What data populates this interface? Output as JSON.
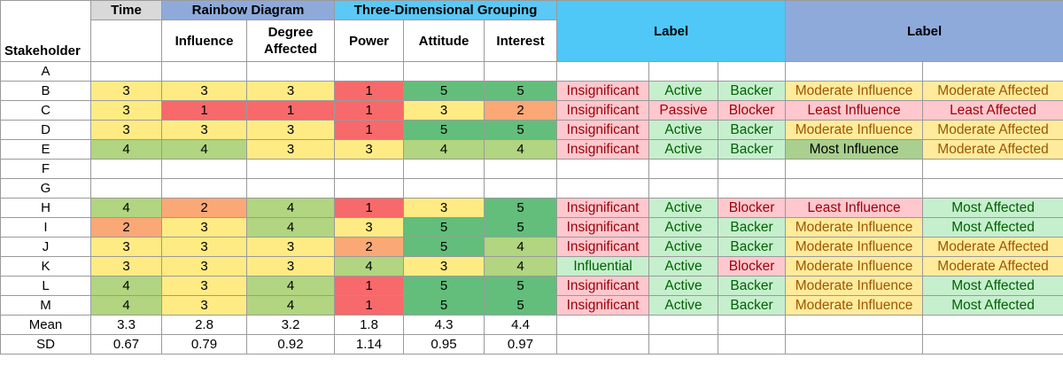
{
  "headers": {
    "stakeholder": "Stakeholder",
    "time": "Time",
    "rainbow": "Rainbow Diagram",
    "three_d": "Three-Dimensional Grouping",
    "label1": "Label",
    "label2": "Label",
    "influence": "Influence",
    "degree_affected": "Degree Affected",
    "power": "Power",
    "attitude": "Attitude",
    "interest": "Interest"
  },
  "colors": {
    "gray_header": "#d9d9d9",
    "rainbow_header": "#8eaadb",
    "three_d_header": "#5bc8f5",
    "label1_header": "#4fc8f8",
    "label2_header": "#8eaadb",
    "score_1": "#f8696b",
    "score_2": "#fba877",
    "score_3": "#ffeb84",
    "score_4": "#b1d580",
    "score_5": "#63be7b",
    "pink_bg": "#ffc7ce",
    "pink_text": "#9c0006",
    "green_bg": "#c6efce",
    "green_text": "#006100",
    "yellow_bg": "#ffeb9c",
    "yellow_text": "#9c5700",
    "most_influence_bg": "#a9d08e",
    "most_influence_text": "#000000"
  },
  "rows": [
    {
      "id": "A",
      "time": "",
      "influence": "",
      "degree": "",
      "power": "",
      "attitude": "",
      "interest": "",
      "l1": "",
      "l2": "",
      "l3": "",
      "l4": "",
      "l5": ""
    },
    {
      "id": "B",
      "time": "3",
      "influence": "3",
      "degree": "3",
      "power": "1",
      "attitude": "5",
      "interest": "5",
      "l1": "Insignificant",
      "l2": "Active",
      "l3": "Backer",
      "l4": "Moderate Influence",
      "l5": "Moderate Affected"
    },
    {
      "id": "C",
      "time": "3",
      "influence": "1",
      "degree": "1",
      "power": "1",
      "attitude": "3",
      "interest": "2",
      "l1": "Insignificant",
      "l2": "Passive",
      "l3": "Blocker",
      "l4": "Least Influence",
      "l5": "Least Affected"
    },
    {
      "id": "D",
      "time": "3",
      "influence": "3",
      "degree": "3",
      "power": "1",
      "attitude": "5",
      "interest": "5",
      "l1": "Insignificant",
      "l2": "Active",
      "l3": "Backer",
      "l4": "Moderate Influence",
      "l5": "Moderate Affected"
    },
    {
      "id": "E",
      "time": "4",
      "influence": "4",
      "degree": "3",
      "power": "3",
      "attitude": "4",
      "interest": "4",
      "l1": "Insignificant",
      "l2": "Active",
      "l3": "Backer",
      "l4": "Most Influence",
      "l5": "Moderate Affected"
    },
    {
      "id": "F",
      "time": "",
      "influence": "",
      "degree": "",
      "power": "",
      "attitude": "",
      "interest": "",
      "l1": "",
      "l2": "",
      "l3": "",
      "l4": "",
      "l5": ""
    },
    {
      "id": "G",
      "time": "",
      "influence": "",
      "degree": "",
      "power": "",
      "attitude": "",
      "interest": "",
      "l1": "",
      "l2": "",
      "l3": "",
      "l4": "",
      "l5": ""
    },
    {
      "id": "H",
      "time": "4",
      "influence": "2",
      "degree": "4",
      "power": "1",
      "attitude": "3",
      "interest": "5",
      "l1": "Insignificant",
      "l2": "Active",
      "l3": "Blocker",
      "l4": "Least Influence",
      "l5": "Most Affected"
    },
    {
      "id": "I",
      "time": "2",
      "influence": "3",
      "degree": "4",
      "power": "3",
      "attitude": "5",
      "interest": "5",
      "l1": "Insignificant",
      "l2": "Active",
      "l3": "Backer",
      "l4": "Moderate Influence",
      "l5": "Most Affected"
    },
    {
      "id": "J",
      "time": "3",
      "influence": "3",
      "degree": "3",
      "power": "2",
      "attitude": "5",
      "interest": "4",
      "l1": "Insignificant",
      "l2": "Active",
      "l3": "Backer",
      "l4": "Moderate Influence",
      "l5": "Moderate Affected"
    },
    {
      "id": "K",
      "time": "3",
      "influence": "3",
      "degree": "3",
      "power": "4",
      "attitude": "3",
      "interest": "4",
      "l1": "Influential",
      "l2": "Active",
      "l3": "Blocker",
      "l4": "Moderate Influence",
      "l5": "Moderate Affected"
    },
    {
      "id": "L",
      "time": "4",
      "influence": "3",
      "degree": "4",
      "power": "1",
      "attitude": "5",
      "interest": "5",
      "l1": "Insignificant",
      "l2": "Active",
      "l3": "Backer",
      "l4": "Moderate Influence",
      "l5": "Most Affected"
    },
    {
      "id": "M",
      "time": "4",
      "influence": "3",
      "degree": "4",
      "power": "1",
      "attitude": "5",
      "interest": "5",
      "l1": "Insignificant",
      "l2": "Active",
      "l3": "Backer",
      "l4": "Moderate Influence",
      "l5": "Most Affected"
    }
  ],
  "summary": [
    {
      "label": "Mean",
      "time": "3.3",
      "influence": "2.8",
      "degree": "3.2",
      "power": "1.8",
      "attitude": "4.3",
      "interest": "4.4"
    },
    {
      "label": "SD",
      "time": "0.67",
      "influence": "0.79",
      "degree": "0.92",
      "power": "1.14",
      "attitude": "0.95",
      "interest": "0.97"
    }
  ]
}
